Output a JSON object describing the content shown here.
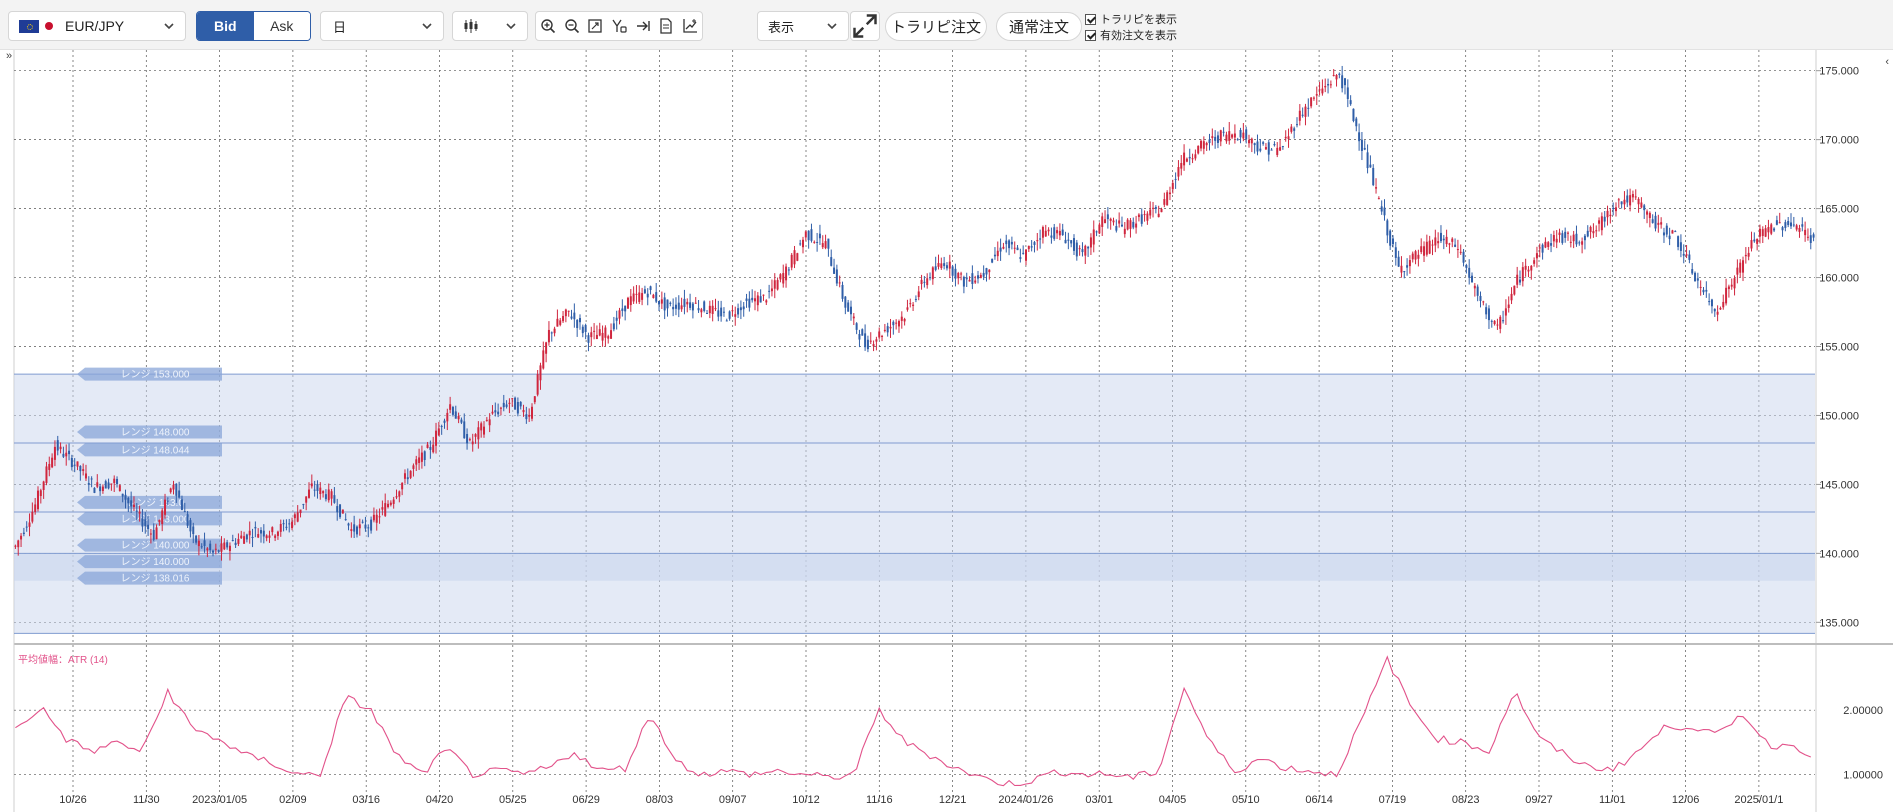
{
  "toolbar": {
    "symbol": "EUR/JPY",
    "bid_label": "Bid",
    "ask_label": "Ask",
    "period": "日",
    "display_label": "表示",
    "trap_order_label": "トラリピ注文",
    "normal_order_label": "通常注文",
    "check_show_trap": "トラリピを表示",
    "check_show_orders": "有効注文を表示"
  },
  "colors": {
    "up": "#d0263e",
    "down": "#2f5ea8",
    "range_fill": "#c9d6ee",
    "atr_line": "#e2528a",
    "bid_active": "#2f5ea8"
  },
  "chart_data": {
    "type": "candlestick",
    "price_axis": {
      "ticks": [
        "175.000",
        "170.000",
        "165.000",
        "160.000",
        "155.000",
        "150.000",
        "145.000",
        "140.000",
        "135.000"
      ],
      "ylim": [
        133.5,
        176.5
      ]
    },
    "x_axis": {
      "labels": [
        "10/26",
        "11/30",
        "2023/01/05",
        "02/09",
        "03/16",
        "04/20",
        "05/25",
        "06/29",
        "08/03",
        "09/07",
        "10/12",
        "11/16",
        "12/21",
        "2024/01/26",
        "03/01",
        "04/05",
        "05/10",
        "06/14",
        "07/19",
        "08/23",
        "09/27",
        "11/01",
        "12/06",
        "2025/01/1"
      ]
    },
    "ohlc_anchors": [
      [
        0,
        140.5
      ],
      [
        7,
        143.5
      ],
      [
        14,
        147.8
      ],
      [
        21,
        146.5
      ],
      [
        28,
        144.8
      ],
      [
        35,
        145.2
      ],
      [
        42,
        143.1
      ],
      [
        49,
        141.3
      ],
      [
        56,
        145.2
      ],
      [
        63,
        141.0
      ],
      [
        70,
        140.0
      ],
      [
        77,
        140.8
      ],
      [
        84,
        141.6
      ],
      [
        91,
        141.5
      ],
      [
        98,
        142.3
      ],
      [
        105,
        144.8
      ],
      [
        112,
        144.1
      ],
      [
        119,
        141.7
      ],
      [
        126,
        142.1
      ],
      [
        133,
        143.9
      ],
      [
        140,
        146.0
      ],
      [
        147,
        147.7
      ],
      [
        154,
        150.8
      ],
      [
        161,
        147.9
      ],
      [
        168,
        149.9
      ],
      [
        175,
        151.0
      ],
      [
        182,
        150.0
      ],
      [
        189,
        156.0
      ],
      [
        196,
        157.5
      ],
      [
        203,
        155.7
      ],
      [
        210,
        156.0
      ],
      [
        217,
        158.3
      ],
      [
        224,
        159.0
      ],
      [
        231,
        157.8
      ],
      [
        238,
        158.2
      ],
      [
        245,
        157.7
      ],
      [
        252,
        157.2
      ],
      [
        259,
        158.2
      ],
      [
        266,
        158.6
      ],
      [
        273,
        160.5
      ],
      [
        280,
        163.2
      ],
      [
        287,
        162.4
      ],
      [
        294,
        158.0
      ],
      [
        301,
        155.1
      ],
      [
        308,
        156.2
      ],
      [
        315,
        157.3
      ],
      [
        322,
        159.8
      ],
      [
        329,
        161.2
      ],
      [
        336,
        159.7
      ],
      [
        343,
        160.3
      ],
      [
        350,
        162.5
      ],
      [
        357,
        161.5
      ],
      [
        364,
        163.4
      ],
      [
        371,
        163.1
      ],
      [
        378,
        161.5
      ],
      [
        385,
        164.3
      ],
      [
        392,
        163.6
      ],
      [
        399,
        164.3
      ],
      [
        406,
        165.0
      ],
      [
        413,
        168.5
      ],
      [
        420,
        169.5
      ],
      [
        427,
        170.3
      ],
      [
        434,
        170.5
      ],
      [
        441,
        169.4
      ],
      [
        448,
        169.3
      ],
      [
        455,
        171.8
      ],
      [
        462,
        173.5
      ],
      [
        469,
        174.8
      ],
      [
        476,
        170.3
      ],
      [
        483,
        165.5
      ],
      [
        490,
        160.6
      ],
      [
        497,
        161.7
      ],
      [
        504,
        162.8
      ],
      [
        511,
        162.2
      ],
      [
        518,
        158.5
      ],
      [
        525,
        156.2
      ],
      [
        532,
        159.8
      ],
      [
        539,
        161.8
      ],
      [
        546,
        163.0
      ],
      [
        553,
        162.7
      ],
      [
        560,
        163.5
      ],
      [
        567,
        165.5
      ],
      [
        574,
        165.7
      ],
      [
        581,
        163.8
      ],
      [
        588,
        163.0
      ],
      [
        595,
        160.0
      ],
      [
        602,
        157.5
      ],
      [
        609,
        160.0
      ],
      [
        616,
        162.8
      ],
      [
        623,
        163.8
      ],
      [
        630,
        163.9
      ],
      [
        637,
        162.7
      ]
    ],
    "range_bands": [
      {
        "label": "レンジ 153.000",
        "price": 153.0
      },
      {
        "label": "レンジ 148.000",
        "price": 148.0
      },
      {
        "label": "レンジ 148.044",
        "price": 148.044
      },
      {
        "label": "レンジ 143.0",
        "price": 143.0
      },
      {
        "label": "レンジ 143.000",
        "price": 143.0
      },
      {
        "label": "レンジ 140.000",
        "price": 140.0
      },
      {
        "label": "レンジ 140.000",
        "price": 140.0
      },
      {
        "label": "レンジ 138.016",
        "price": 138.016
      }
    ],
    "atr": {
      "title": "平均値幅：ATR (14)",
      "ticks": [
        "2.00000",
        "1.00000"
      ],
      "ylim": [
        0.6,
        3.0
      ],
      "anchors": [
        [
          0,
          1.7
        ],
        [
          9,
          2.05
        ],
        [
          18,
          1.55
        ],
        [
          27,
          1.35
        ],
        [
          36,
          1.5
        ],
        [
          45,
          1.35
        ],
        [
          54,
          2.3
        ],
        [
          63,
          1.7
        ],
        [
          72,
          1.55
        ],
        [
          81,
          1.3
        ],
        [
          90,
          1.2
        ],
        [
          99,
          1.0
        ],
        [
          108,
          1.0
        ],
        [
          117,
          2.2
        ],
        [
          126,
          2.0
        ],
        [
          135,
          1.3
        ],
        [
          144,
          1.0
        ],
        [
          153,
          1.4
        ],
        [
          162,
          1.0
        ],
        [
          171,
          1.05
        ],
        [
          180,
          1.0
        ],
        [
          189,
          1.1
        ],
        [
          198,
          1.35
        ],
        [
          207,
          1.05
        ],
        [
          216,
          1.1
        ],
        [
          225,
          1.95
        ],
        [
          234,
          1.2
        ],
        [
          243,
          1.0
        ],
        [
          252,
          1.05
        ],
        [
          261,
          1.0
        ],
        [
          270,
          1.05
        ],
        [
          279,
          1.0
        ],
        [
          288,
          0.95
        ],
        [
          297,
          1.0
        ],
        [
          306,
          2.0
        ],
        [
          315,
          1.5
        ],
        [
          324,
          1.3
        ],
        [
          333,
          1.1
        ],
        [
          342,
          0.95
        ],
        [
          351,
          0.85
        ],
        [
          360,
          0.9
        ],
        [
          369,
          1.05
        ],
        [
          378,
          1.0
        ],
        [
          387,
          1.0
        ],
        [
          396,
          0.95
        ],
        [
          405,
          1.05
        ],
        [
          414,
          2.35
        ],
        [
          423,
          1.5
        ],
        [
          432,
          1.05
        ],
        [
          441,
          1.25
        ],
        [
          450,
          1.1
        ],
        [
          459,
          1.05
        ],
        [
          468,
          1.0
        ],
        [
          477,
          1.85
        ],
        [
          486,
          2.8
        ],
        [
          495,
          2.0
        ],
        [
          504,
          1.55
        ],
        [
          513,
          1.5
        ],
        [
          522,
          1.35
        ],
        [
          531,
          2.3
        ],
        [
          540,
          1.55
        ],
        [
          549,
          1.3
        ],
        [
          558,
          1.1
        ],
        [
          567,
          1.1
        ],
        [
          576,
          1.4
        ],
        [
          585,
          1.75
        ],
        [
          594,
          1.75
        ],
        [
          603,
          1.6
        ],
        [
          612,
          1.95
        ],
        [
          621,
          1.45
        ],
        [
          630,
          1.45
        ],
        [
          637,
          1.3
        ]
      ]
    }
  }
}
